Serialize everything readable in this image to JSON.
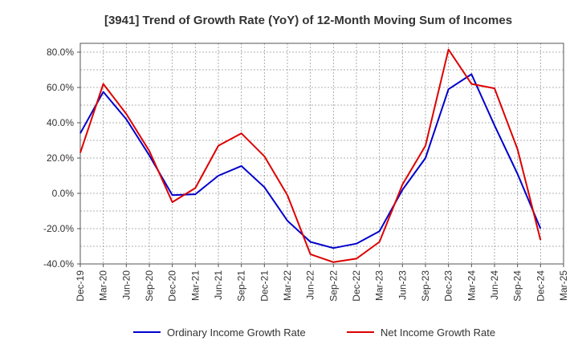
{
  "chart_data": {
    "type": "line",
    "title": "[3941]  Trend of Growth Rate (YoY) of 12-Month Moving Sum of Incomes",
    "xlabel": "",
    "ylabel": "",
    "ylim": [
      -40,
      85
    ],
    "y_ticks": [
      -40,
      -20,
      0,
      20,
      40,
      60,
      80
    ],
    "y_tick_labels": [
      "-40.0%",
      "-20.0%",
      "0.0%",
      "20.0%",
      "40.0%",
      "60.0%",
      "80.0%"
    ],
    "x_tick_labels": [
      "Dec-19",
      "Mar-20",
      "Jun-20",
      "Sep-20",
      "Dec-20",
      "Mar-21",
      "Jun-21",
      "Sep-21",
      "Dec-21",
      "Mar-22",
      "Jun-22",
      "Sep-22",
      "Dec-22",
      "Mar-23",
      "Jun-23",
      "Sep-23",
      "Dec-23",
      "Mar-24",
      "Jun-24",
      "Sep-24",
      "Dec-24",
      "Mar-25"
    ],
    "grid": true,
    "legend_position": "bottom",
    "series": [
      {
        "name": "Ordinary Income Growth Rate",
        "color": "#0000cc",
        "values": [
          34,
          57.5,
          42,
          21.5,
          -1,
          -0.5,
          10,
          15.5,
          3.5,
          -15.5,
          -27.5,
          -31,
          -28.5,
          -21.5,
          2,
          20,
          59,
          67.5,
          38.5,
          11,
          -20
        ]
      },
      {
        "name": "Net Income Growth Rate",
        "color": "#dd0000",
        "values": [
          23,
          62,
          45,
          24,
          -5,
          3,
          27,
          34,
          21,
          -1,
          -34.5,
          -39,
          -37,
          -27.5,
          5,
          27,
          81.5,
          62,
          59.5,
          25,
          -26.5
        ]
      }
    ]
  }
}
